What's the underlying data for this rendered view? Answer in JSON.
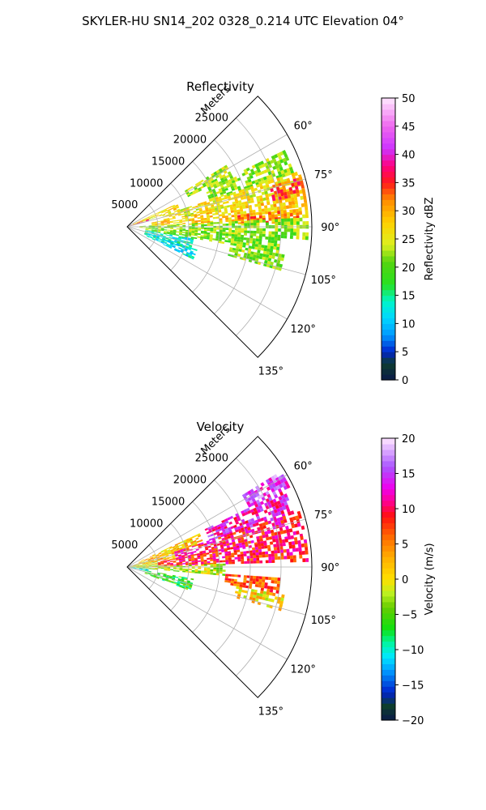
{
  "figure": {
    "title": "SKYLER-HU  SN14_202  0328_0.214 UTC Elevation 04°"
  },
  "chart_data": [
    {
      "type": "heatmap",
      "projection": "polar-sector",
      "title": "Reflectivity",
      "r_axis_label": "Meters",
      "r_ticks": [
        "5000",
        "10000",
        "15000",
        "20000",
        "25000"
      ],
      "r_tick_values": [
        5000,
        10000,
        15000,
        20000,
        25000
      ],
      "r_range": [
        0,
        30000
      ],
      "theta_range_deg": [
        45,
        135
      ],
      "theta_ticks": [
        "60°",
        "75°",
        "90°",
        "105°",
        "120°",
        "135°"
      ],
      "theta_tick_values": [
        60,
        75,
        90,
        105,
        120,
        135
      ],
      "grid": true,
      "colorbar": {
        "label": "Reflectivity dBZ",
        "range": [
          0,
          50
        ],
        "ticks": [
          "0",
          "5",
          "10",
          "15",
          "20",
          "25",
          "30",
          "35",
          "40",
          "45",
          "50"
        ],
        "tick_values": [
          0,
          5,
          10,
          15,
          20,
          25,
          30,
          35,
          40,
          45,
          50
        ],
        "colormap": "pyart_NWSRef",
        "stops": [
          {
            "v": 0,
            "c": "#0a1a4a"
          },
          {
            "v": 3,
            "c": "#0d3d2e"
          },
          {
            "v": 5,
            "c": "#0022cc"
          },
          {
            "v": 8,
            "c": "#0099ff"
          },
          {
            "v": 11,
            "c": "#00d7ff"
          },
          {
            "v": 14,
            "c": "#00f5c8"
          },
          {
            "v": 17,
            "c": "#28e020"
          },
          {
            "v": 21,
            "c": "#56d410"
          },
          {
            "v": 24,
            "c": "#ddf020"
          },
          {
            "v": 28,
            "c": "#ffd000"
          },
          {
            "v": 32,
            "c": "#ff8a00"
          },
          {
            "v": 35,
            "c": "#ff1a1a"
          },
          {
            "v": 38,
            "c": "#ff0080"
          },
          {
            "v": 41,
            "c": "#cc33ff"
          },
          {
            "v": 45,
            "c": "#ee66ee"
          },
          {
            "v": 50,
            "c": "#ffe8ff"
          }
        ]
      },
      "echo_regions": [
        {
          "theta": [
            58,
            64
          ],
          "r": [
            11000,
            19000
          ],
          "value": 23
        },
        {
          "theta": [
            64,
            72
          ],
          "r": [
            14000,
            28500
          ],
          "value": 22
        },
        {
          "theta": [
            72,
            80
          ],
          "r": [
            6000,
            29500
          ],
          "value": 26
        },
        {
          "theta": [
            74,
            79
          ],
          "r": [
            24000,
            29500
          ],
          "value": 34
        },
        {
          "theta": [
            80,
            87
          ],
          "r": [
            4000,
            29500
          ],
          "value": 28
        },
        {
          "theta": [
            84,
            88
          ],
          "r": [
            18000,
            28000
          ],
          "value": 32
        },
        {
          "theta": [
            87,
            94
          ],
          "r": [
            2000,
            29500
          ],
          "value": 22
        },
        {
          "theta": [
            94,
            100
          ],
          "r": [
            3000,
            25000
          ],
          "value": 21
        },
        {
          "theta": [
            100,
            106
          ],
          "r": [
            17000,
            26000
          ],
          "value": 22
        },
        {
          "theta": [
            65,
            72
          ],
          "r": [
            1000,
            9000
          ],
          "value": 27
        },
        {
          "theta": [
            69,
            74
          ],
          "r": [
            200,
            3500
          ],
          "value": 37
        },
        {
          "theta": [
            100,
            110
          ],
          "r": [
            3000,
            11000
          ],
          "value": 13
        },
        {
          "theta": [
            108,
            116
          ],
          "r": [
            3000,
            12000
          ],
          "value": 12
        }
      ]
    },
    {
      "type": "heatmap",
      "projection": "polar-sector",
      "title": "Velocity",
      "r_axis_label": "Meters",
      "r_ticks": [
        "5000",
        "10000",
        "15000",
        "20000",
        "25000"
      ],
      "r_tick_values": [
        5000,
        10000,
        15000,
        20000,
        25000
      ],
      "r_range": [
        0,
        30000
      ],
      "theta_range_deg": [
        45,
        135
      ],
      "theta_ticks": [
        "60°",
        "75°",
        "90°",
        "105°",
        "120°",
        "135°"
      ],
      "theta_tick_values": [
        60,
        75,
        90,
        105,
        120,
        135
      ],
      "grid": true,
      "colorbar": {
        "label": "Velocity (m/s)",
        "range": [
          -20,
          20
        ],
        "ticks": [
          "−20",
          "−15",
          "−10",
          "−5",
          "0",
          "5",
          "10",
          "15",
          "20"
        ],
        "tick_values": [
          -20,
          -15,
          -10,
          -5,
          0,
          5,
          10,
          15,
          20
        ],
        "colormap": "pyart_BuDRd18",
        "stops": [
          {
            "v": -20,
            "c": "#0a1a4a"
          },
          {
            "v": -18,
            "c": "#0d3d2e"
          },
          {
            "v": -16,
            "c": "#0022cc"
          },
          {
            "v": -13,
            "c": "#0099ff"
          },
          {
            "v": -11,
            "c": "#00e8ff"
          },
          {
            "v": -9,
            "c": "#00f5a0"
          },
          {
            "v": -7,
            "c": "#10e010"
          },
          {
            "v": -4,
            "c": "#66cc00"
          },
          {
            "v": -2,
            "c": "#bbf020"
          },
          {
            "v": 0,
            "c": "#ffe000"
          },
          {
            "v": 3,
            "c": "#ffb000"
          },
          {
            "v": 6,
            "c": "#ff6a00"
          },
          {
            "v": 9,
            "c": "#ff1010"
          },
          {
            "v": 11,
            "c": "#ff0090"
          },
          {
            "v": 13,
            "c": "#ee00ee"
          },
          {
            "v": 16,
            "c": "#aa55ff"
          },
          {
            "v": 20,
            "c": "#ffe8ff"
          }
        ]
      },
      "echo_regions": [
        {
          "theta": [
            58,
            64
          ],
          "r": [
            22000,
            29500
          ],
          "value": 15
        },
        {
          "theta": [
            64,
            72
          ],
          "r": [
            14000,
            28500
          ],
          "value": 13
        },
        {
          "theta": [
            72,
            80
          ],
          "r": [
            8000,
            29500
          ],
          "value": 10
        },
        {
          "theta": [
            80,
            88
          ],
          "r": [
            5000,
            29500
          ],
          "value": 9
        },
        {
          "theta": [
            72,
            80
          ],
          "r": [
            1000,
            8000
          ],
          "value": 2
        },
        {
          "theta": [
            80,
            88
          ],
          "r": [
            500,
            5000
          ],
          "value": -1
        },
        {
          "theta": [
            88,
            95
          ],
          "r": [
            1000,
            16000
          ],
          "value": -2
        },
        {
          "theta": [
            94,
            100
          ],
          "r": [
            16000,
            25000
          ],
          "value": 6
        },
        {
          "theta": [
            100,
            106
          ],
          "r": [
            18000,
            26000
          ],
          "value": 1
        },
        {
          "theta": [
            65,
            72
          ],
          "r": [
            2000,
            13000
          ],
          "value": 2
        },
        {
          "theta": [
            100,
            110
          ],
          "r": [
            3000,
            11000
          ],
          "value": -6
        },
        {
          "theta": [
            95,
            102
          ],
          "r": [
            500,
            3500
          ],
          "value": -10
        }
      ]
    }
  ]
}
